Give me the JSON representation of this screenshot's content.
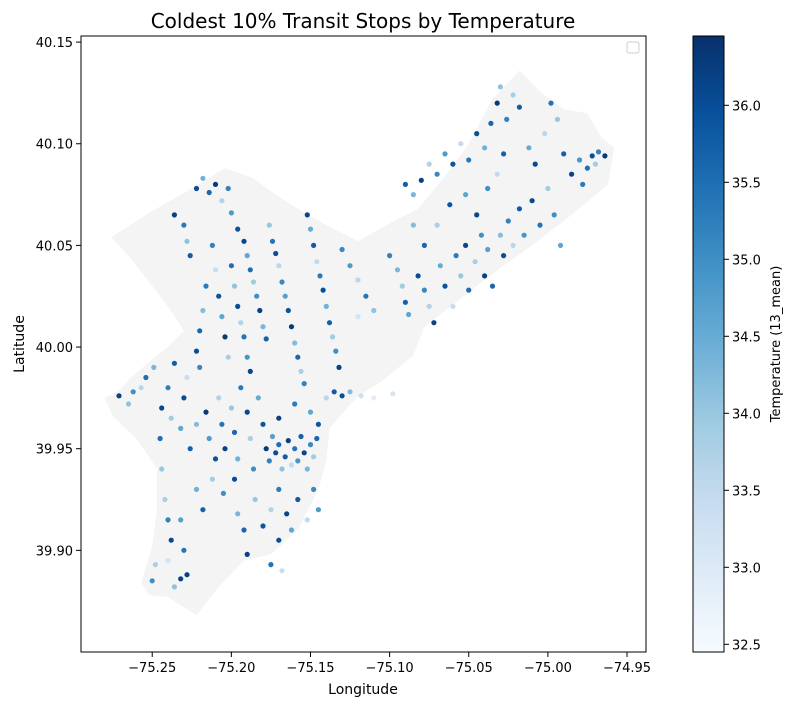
{
  "chart_data": {
    "type": "scatter",
    "title": "Coldest 10% Transit Stops by Temperature",
    "xlabel": "Longitude",
    "ylabel": "Latitude",
    "xlim": [
      -75.295,
      -74.938
    ],
    "ylim": [
      39.85,
      40.153
    ],
    "xticks": [
      -75.25,
      -75.2,
      -75.15,
      -75.1,
      -75.05,
      -75.0,
      -74.95
    ],
    "xtick_labels": [
      "−75.25",
      "−75.20",
      "−75.15",
      "−75.10",
      "−75.05",
      "−75.00",
      "−74.95"
    ],
    "yticks": [
      39.9,
      39.95,
      40.0,
      40.05,
      40.1,
      40.15
    ],
    "ytick_labels": [
      "39.90",
      "39.95",
      "40.00",
      "40.05",
      "40.10",
      "40.15"
    ],
    "grid": false,
    "legend": "top-right (empty)",
    "colorbar": {
      "label": "Temperature (13_mean)",
      "range": [
        32.45,
        36.45
      ],
      "ticks": [
        32.5,
        33.0,
        33.5,
        34.0,
        34.5,
        35.0,
        35.5,
        36.0
      ],
      "tick_labels": [
        "32.5",
        "33.0",
        "33.5",
        "34.0",
        "34.5",
        "35.0",
        "35.5",
        "36.0"
      ],
      "colormap": "Blues",
      "colors": [
        "#f7fbff",
        "#deebf7",
        "#c6dbef",
        "#9ecae1",
        "#6baed6",
        "#4292c6",
        "#2171b5",
        "#08519c",
        "#08306b"
      ]
    },
    "boundary_color": "#f4f4f4",
    "boundary": [
      [
        -75.272,
        39.978
      ],
      [
        -75.262,
        39.986
      ],
      [
        -75.25,
        39.994
      ],
      [
        -75.24,
        40.0
      ],
      [
        -75.23,
        40.008
      ],
      [
        -75.24,
        40.02
      ],
      [
        -75.252,
        40.032
      ],
      [
        -75.264,
        40.044
      ],
      [
        -75.276,
        40.054
      ],
      [
        -75.252,
        40.066
      ],
      [
        -75.225,
        40.078
      ],
      [
        -75.204,
        40.088
      ],
      [
        -75.186,
        40.083
      ],
      [
        -75.172,
        40.075
      ],
      [
        -75.158,
        40.068
      ],
      [
        -75.14,
        40.06
      ],
      [
        -75.12,
        40.052
      ],
      [
        -75.102,
        40.06
      ],
      [
        -75.082,
        40.068
      ],
      [
        -75.065,
        40.084
      ],
      [
        -75.05,
        40.1
      ],
      [
        -75.035,
        40.122
      ],
      [
        -75.018,
        40.136
      ],
      [
        -75.004,
        40.125
      ],
      [
        -74.99,
        40.117
      ],
      [
        -74.975,
        40.115
      ],
      [
        -74.966,
        40.103
      ],
      [
        -74.958,
        40.098
      ],
      [
        -74.962,
        40.08
      ],
      [
        -74.985,
        40.065
      ],
      [
        -75.01,
        40.05
      ],
      [
        -75.035,
        40.036
      ],
      [
        -75.058,
        40.022
      ],
      [
        -75.078,
        40.01
      ],
      [
        -75.085,
        39.996
      ],
      [
        -75.105,
        39.983
      ],
      [
        -75.12,
        39.976
      ],
      [
        -75.138,
        39.96
      ],
      [
        -75.14,
        39.944
      ],
      [
        -75.145,
        39.93
      ],
      [
        -75.158,
        39.91
      ],
      [
        -75.175,
        39.898
      ],
      [
        -75.192,
        39.895
      ],
      [
        -75.208,
        39.882
      ],
      [
        -75.222,
        39.868
      ],
      [
        -75.24,
        39.877
      ],
      [
        -75.252,
        39.878
      ],
      [
        -75.257,
        39.884
      ],
      [
        -75.25,
        39.902
      ],
      [
        -75.247,
        39.92
      ],
      [
        -75.247,
        39.94
      ],
      [
        -75.26,
        39.955
      ],
      [
        -75.275,
        39.966
      ],
      [
        -75.28,
        39.975
      ]
    ],
    "points": [
      [
        -75.271,
        39.976,
        36.2
      ],
      [
        -75.265,
        39.972,
        34.1
      ],
      [
        -75.262,
        39.978,
        35.0
      ],
      [
        -75.257,
        39.98,
        33.6
      ],
      [
        -75.254,
        39.985,
        35.5
      ],
      [
        -75.249,
        39.99,
        34.3
      ],
      [
        -75.244,
        39.97,
        36.1
      ],
      [
        -75.24,
        39.98,
        35.2
      ],
      [
        -75.238,
        39.965,
        33.9
      ],
      [
        -75.236,
        39.992,
        35.8
      ],
      [
        -75.232,
        39.96,
        34.6
      ],
      [
        -75.23,
        39.975,
        36.0
      ],
      [
        -75.228,
        39.985,
        33.4
      ],
      [
        -75.226,
        39.95,
        35.7
      ],
      [
        -75.222,
        39.962,
        34.2
      ],
      [
        -75.22,
        39.99,
        35.1
      ],
      [
        -75.216,
        39.968,
        36.3
      ],
      [
        -75.214,
        39.955,
        34.8
      ],
      [
        -75.21,
        39.945,
        35.9
      ],
      [
        -75.208,
        39.975,
        33.7
      ],
      [
        -75.206,
        39.962,
        35.4
      ],
      [
        -75.204,
        39.95,
        36.2
      ],
      [
        -75.2,
        39.97,
        34.0
      ],
      [
        -75.198,
        39.958,
        35.6
      ],
      [
        -75.196,
        39.945,
        34.4
      ],
      [
        -75.194,
        39.98,
        35.3
      ],
      [
        -75.19,
        39.968,
        36.1
      ],
      [
        -75.188,
        39.955,
        33.8
      ],
      [
        -75.186,
        39.94,
        35.0
      ],
      [
        -75.183,
        39.975,
        34.5
      ],
      [
        -75.18,
        39.962,
        35.9
      ],
      [
        -75.178,
        39.95,
        36.3
      ],
      [
        -75.176,
        39.944,
        35.2
      ],
      [
        -75.174,
        39.956,
        34.7
      ],
      [
        -75.172,
        39.948,
        36.0
      ],
      [
        -75.17,
        39.952,
        35.5
      ],
      [
        -75.168,
        39.94,
        34.1
      ],
      [
        -75.166,
        39.946,
        35.8
      ],
      [
        -75.164,
        39.954,
        36.2
      ],
      [
        -75.162,
        39.942,
        33.5
      ],
      [
        -75.16,
        39.95,
        35.4
      ],
      [
        -75.158,
        39.944,
        34.9
      ],
      [
        -75.156,
        39.956,
        35.7
      ],
      [
        -75.154,
        39.948,
        36.1
      ],
      [
        -75.152,
        39.94,
        34.3
      ],
      [
        -75.15,
        39.952,
        35.1
      ],
      [
        -75.148,
        39.946,
        33.9
      ],
      [
        -75.146,
        39.955,
        35.6
      ],
      [
        -75.17,
        39.965,
        36.2
      ],
      [
        -75.16,
        39.972,
        35.3
      ],
      [
        -75.15,
        39.968,
        34.6
      ],
      [
        -75.145,
        39.962,
        35.9
      ],
      [
        -75.14,
        39.975,
        33.6
      ],
      [
        -75.135,
        39.978,
        35.8
      ],
      [
        -75.13,
        39.976,
        36.0
      ],
      [
        -75.125,
        39.978,
        34.2
      ],
      [
        -75.118,
        39.976,
        33.3
      ],
      [
        -75.11,
        39.975,
        32.9
      ],
      [
        -75.098,
        39.977,
        33.1
      ],
      [
        -75.245,
        39.955,
        35.5
      ],
      [
        -75.244,
        39.94,
        34.0
      ],
      [
        -75.242,
        39.925,
        33.8
      ],
      [
        -75.24,
        39.915,
        35.2
      ],
      [
        -75.238,
        39.905,
        36.1
      ],
      [
        -75.24,
        39.895,
        33.2
      ],
      [
        -75.232,
        39.915,
        34.7
      ],
      [
        -75.23,
        39.9,
        35.4
      ],
      [
        -75.228,
        39.888,
        36.2
      ],
      [
        -75.222,
        39.93,
        34.4
      ],
      [
        -75.218,
        39.92,
        35.7
      ],
      [
        -75.212,
        39.935,
        33.9
      ],
      [
        -75.205,
        39.928,
        35.0
      ],
      [
        -75.198,
        39.935,
        36.0
      ],
      [
        -75.196,
        39.918,
        34.3
      ],
      [
        -75.192,
        39.91,
        35.6
      ],
      [
        -75.185,
        39.925,
        34.0
      ],
      [
        -75.18,
        39.912,
        35.9
      ],
      [
        -75.175,
        39.92,
        33.7
      ],
      [
        -75.17,
        39.93,
        35.3
      ],
      [
        -75.165,
        39.918,
        36.1
      ],
      [
        -75.162,
        39.91,
        34.6
      ],
      [
        -75.158,
        39.925,
        35.8
      ],
      [
        -75.152,
        39.915,
        33.5
      ],
      [
        -75.148,
        39.93,
        35.1
      ],
      [
        -75.145,
        39.92,
        34.8
      ],
      [
        -75.19,
        39.898,
        36.2
      ],
      [
        -75.175,
        39.893,
        35.4
      ],
      [
        -75.17,
        39.905,
        36.0
      ],
      [
        -75.168,
        39.89,
        33.4
      ],
      [
        -75.25,
        39.885,
        35.0
      ],
      [
        -75.236,
        39.882,
        34.1
      ],
      [
        -75.232,
        39.886,
        36.2
      ],
      [
        -75.248,
        39.893,
        33.8
      ],
      [
        -75.236,
        40.065,
        36.2
      ],
      [
        -75.23,
        40.06,
        35.3
      ],
      [
        -75.228,
        40.052,
        34.1
      ],
      [
        -75.226,
        40.045,
        35.8
      ],
      [
        -75.222,
        40.078,
        36.0
      ],
      [
        -75.218,
        40.083,
        34.4
      ],
      [
        -75.214,
        40.076,
        35.6
      ],
      [
        -75.21,
        40.08,
        36.3
      ],
      [
        -75.206,
        40.072,
        33.7
      ],
      [
        -75.202,
        40.078,
        35.2
      ],
      [
        -75.2,
        40.066,
        34.8
      ],
      [
        -75.196,
        40.058,
        35.9
      ],
      [
        -75.192,
        40.052,
        36.1
      ],
      [
        -75.19,
        40.045,
        34.6
      ],
      [
        -75.188,
        40.038,
        35.5
      ],
      [
        -75.186,
        40.032,
        33.9
      ],
      [
        -75.184,
        40.025,
        35.0
      ],
      [
        -75.182,
        40.018,
        36.2
      ],
      [
        -75.18,
        40.01,
        34.3
      ],
      [
        -75.178,
        40.004,
        35.7
      ],
      [
        -75.176,
        40.06,
        34.0
      ],
      [
        -75.174,
        40.052,
        35.4
      ],
      [
        -75.172,
        40.046,
        36.0
      ],
      [
        -75.17,
        40.04,
        33.6
      ],
      [
        -75.168,
        40.032,
        35.1
      ],
      [
        -75.166,
        40.025,
        34.7
      ],
      [
        -75.164,
        40.018,
        35.9
      ],
      [
        -75.162,
        40.01,
        36.3
      ],
      [
        -75.16,
        40.002,
        34.2
      ],
      [
        -75.158,
        39.995,
        35.6
      ],
      [
        -75.156,
        39.988,
        33.8
      ],
      [
        -75.154,
        39.982,
        35.2
      ],
      [
        -75.152,
        40.065,
        36.1
      ],
      [
        -75.15,
        40.058,
        34.5
      ],
      [
        -75.148,
        40.05,
        35.8
      ],
      [
        -75.146,
        40.042,
        33.5
      ],
      [
        -75.144,
        40.035,
        35.3
      ],
      [
        -75.142,
        40.028,
        36.0
      ],
      [
        -75.14,
        40.02,
        34.4
      ],
      [
        -75.138,
        40.012,
        35.7
      ],
      [
        -75.136,
        40.005,
        33.9
      ],
      [
        -75.134,
        39.998,
        35.0
      ],
      [
        -75.132,
        39.99,
        36.2
      ],
      [
        -75.2,
        40.04,
        35.5
      ],
      [
        -75.198,
        40.03,
        34.1
      ],
      [
        -75.196,
        40.02,
        36.0
      ],
      [
        -75.194,
        40.012,
        33.7
      ],
      [
        -75.192,
        40.005,
        35.4
      ],
      [
        -75.19,
        39.995,
        34.9
      ],
      [
        -75.188,
        39.988,
        36.1
      ],
      [
        -75.212,
        40.05,
        35.2
      ],
      [
        -75.21,
        40.038,
        33.4
      ],
      [
        -75.208,
        40.025,
        35.9
      ],
      [
        -75.206,
        40.015,
        34.6
      ],
      [
        -75.204,
        40.005,
        36.3
      ],
      [
        -75.202,
        39.995,
        33.8
      ],
      [
        -75.216,
        40.03,
        35.3
      ],
      [
        -75.218,
        40.018,
        34.2
      ],
      [
        -75.22,
        40.008,
        35.6
      ],
      [
        -75.222,
        39.998,
        36.0
      ],
      [
        -75.13,
        40.048,
        35.1
      ],
      [
        -75.125,
        40.04,
        34.8
      ],
      [
        -75.12,
        40.033,
        33.6
      ],
      [
        -75.115,
        40.025,
        35.4
      ],
      [
        -75.11,
        40.018,
        34.1
      ],
      [
        -75.12,
        40.015,
        33.2
      ],
      [
        -75.1,
        40.045,
        35.2
      ],
      [
        -75.095,
        40.038,
        34.3
      ],
      [
        -75.092,
        40.03,
        33.9
      ],
      [
        -75.09,
        40.022,
        35.7
      ],
      [
        -75.088,
        40.016,
        34.6
      ],
      [
        -75.082,
        40.035,
        36.0
      ],
      [
        -75.078,
        40.028,
        35.1
      ],
      [
        -75.075,
        40.02,
        33.7
      ],
      [
        -75.072,
        40.012,
        36.2
      ],
      [
        -75.068,
        40.04,
        34.5
      ],
      [
        -75.065,
        40.03,
        35.9
      ],
      [
        -75.06,
        40.02,
        33.4
      ],
      [
        -75.058,
        40.045,
        35.3
      ],
      [
        -75.055,
        40.035,
        34.0
      ],
      [
        -75.052,
        40.05,
        36.1
      ],
      [
        -75.05,
        40.028,
        35.5
      ],
      [
        -75.046,
        40.042,
        33.8
      ],
      [
        -75.042,
        40.055,
        35.0
      ],
      [
        -75.04,
        40.035,
        36.2
      ],
      [
        -75.038,
        40.048,
        34.7
      ],
      [
        -75.035,
        40.03,
        35.6
      ],
      [
        -75.03,
        40.055,
        34.2
      ],
      [
        -75.028,
        40.045,
        36.0
      ],
      [
        -75.025,
        40.062,
        35.2
      ],
      [
        -75.022,
        40.05,
        33.6
      ],
      [
        -75.018,
        40.068,
        35.8
      ],
      [
        -75.015,
        40.055,
        34.9
      ],
      [
        -75.01,
        40.072,
        36.1
      ],
      [
        -75.005,
        40.06,
        35.4
      ],
      [
        -75.0,
        40.078,
        33.9
      ],
      [
        -74.996,
        40.065,
        35.0
      ],
      [
        -74.992,
        40.05,
        34.6
      ],
      [
        -75.09,
        40.08,
        35.7
      ],
      [
        -75.085,
        40.075,
        34.3
      ],
      [
        -75.08,
        40.082,
        36.2
      ],
      [
        -75.075,
        40.09,
        33.7
      ],
      [
        -75.07,
        40.085,
        35.1
      ],
      [
        -75.065,
        40.095,
        34.8
      ],
      [
        -75.06,
        40.09,
        35.9
      ],
      [
        -75.055,
        40.1,
        33.5
      ],
      [
        -75.05,
        40.092,
        35.3
      ],
      [
        -75.045,
        40.105,
        36.0
      ],
      [
        -75.04,
        40.098,
        34.4
      ],
      [
        -75.036,
        40.11,
        35.6
      ],
      [
        -75.032,
        40.12,
        36.3
      ],
      [
        -75.03,
        40.128,
        34.1
      ],
      [
        -75.026,
        40.112,
        35.2
      ],
      [
        -75.022,
        40.124,
        33.8
      ],
      [
        -75.018,
        40.118,
        35.8
      ],
      [
        -75.012,
        40.098,
        34.5
      ],
      [
        -75.008,
        40.09,
        36.1
      ],
      [
        -75.002,
        40.105,
        33.6
      ],
      [
        -74.998,
        40.12,
        35.4
      ],
      [
        -74.994,
        40.112,
        34.0
      ],
      [
        -74.99,
        40.095,
        35.7
      ],
      [
        -74.985,
        40.085,
        36.2
      ],
      [
        -74.98,
        40.092,
        34.9
      ],
      [
        -74.975,
        40.088,
        35.5
      ],
      [
        -74.972,
        40.094,
        36.0
      ],
      [
        -74.968,
        40.096,
        35.2
      ],
      [
        -74.964,
        40.094,
        36.3
      ],
      [
        -74.97,
        40.09,
        33.9
      ],
      [
        -74.978,
        40.08,
        35.3
      ],
      [
        -75.085,
        40.06,
        34.2
      ],
      [
        -75.078,
        40.05,
        35.6
      ],
      [
        -75.07,
        40.06,
        33.8
      ],
      [
        -75.062,
        40.07,
        35.9
      ],
      [
        -75.052,
        40.075,
        34.6
      ],
      [
        -75.045,
        40.065,
        36.1
      ],
      [
        -75.038,
        40.078,
        35.0
      ],
      [
        -75.032,
        40.085,
        33.5
      ],
      [
        -75.028,
        40.095,
        35.7
      ]
    ]
  }
}
